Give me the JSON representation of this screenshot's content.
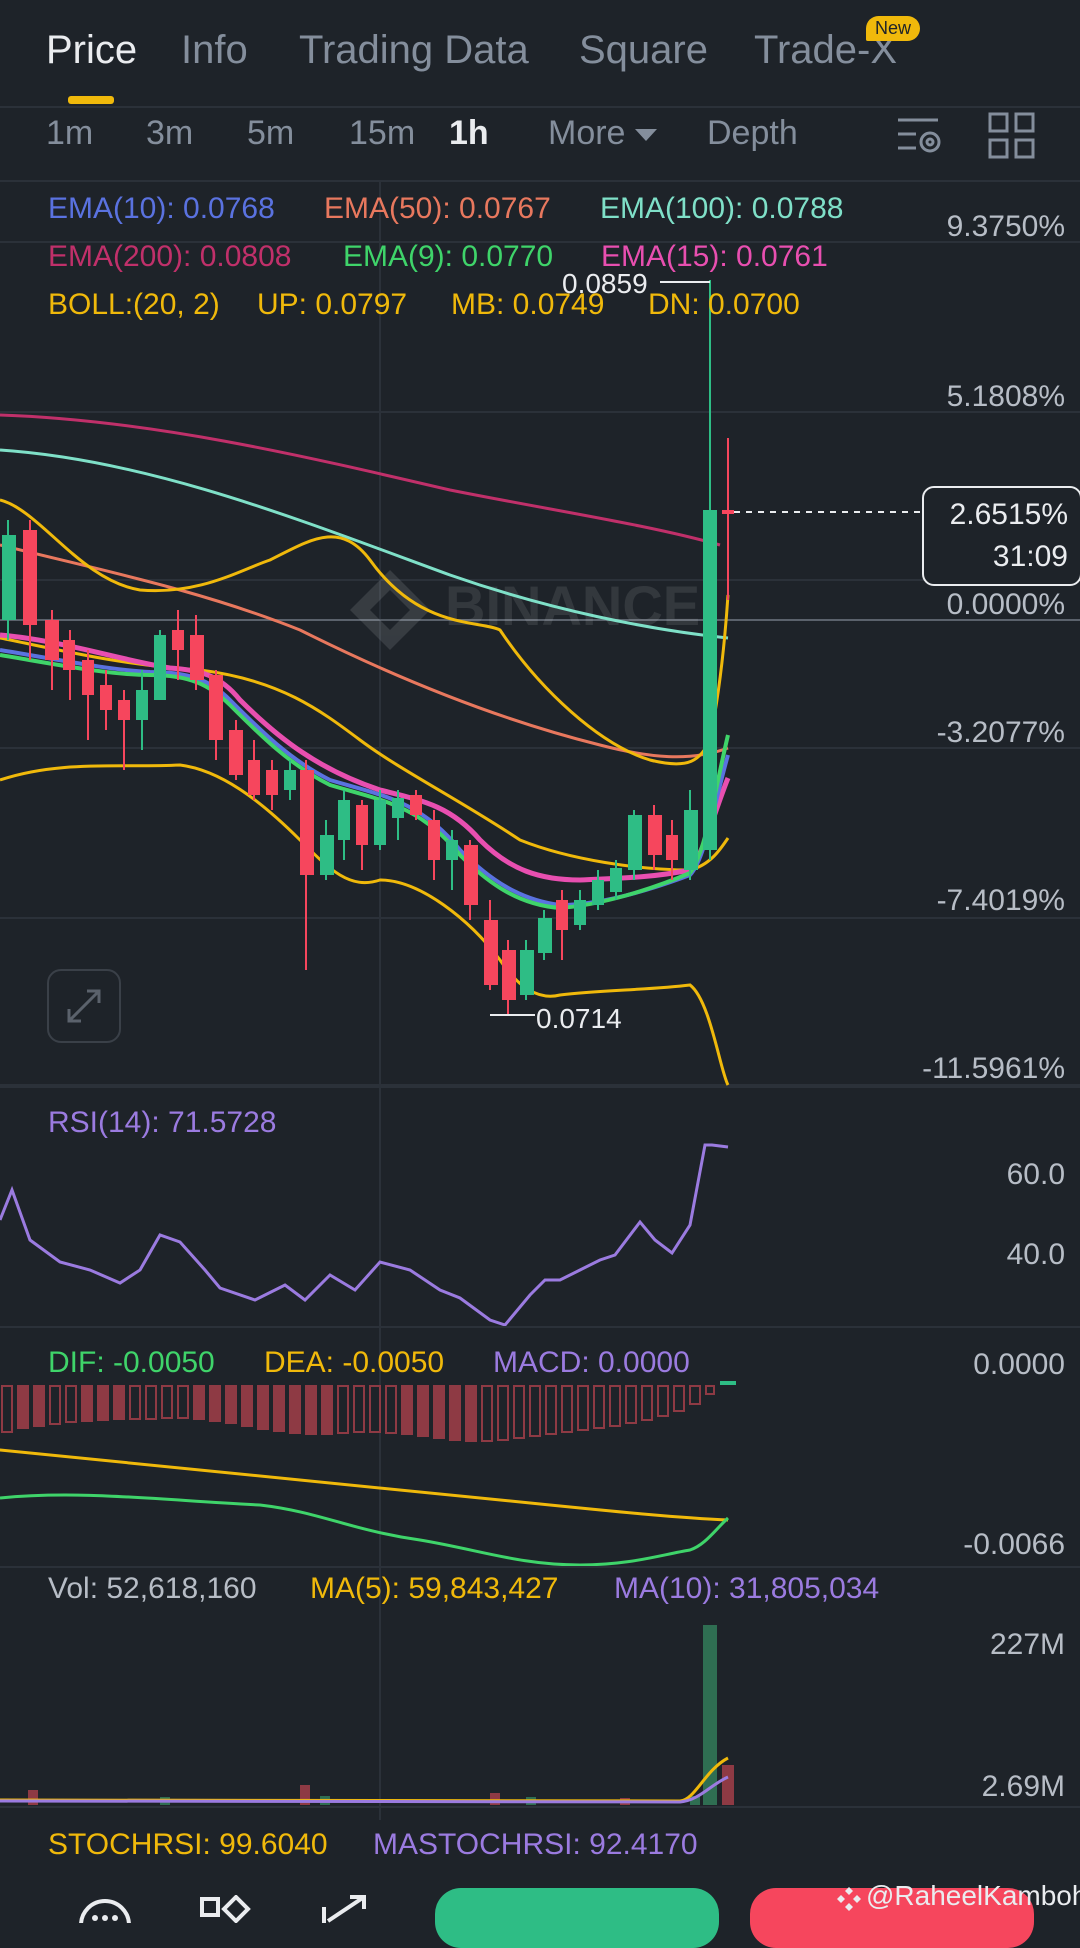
{
  "tabs": [
    {
      "label": "Price",
      "active": true
    },
    {
      "label": "Info"
    },
    {
      "label": "Trading Data"
    },
    {
      "label": "Square"
    },
    {
      "label": "Trade-X",
      "badge": "New"
    }
  ],
  "timeframes": {
    "items": [
      "1m",
      "3m",
      "5m",
      "15m",
      "1h"
    ],
    "active": "1h",
    "more_label": "More",
    "depth_label": "Depth"
  },
  "price_panel": {
    "ema_row1": [
      "EMA(10): 0.0768",
      "EMA(50): 0.0767",
      "EMA(100): 0.0788"
    ],
    "ema_row2": [
      "EMA(200): 0.0808",
      "EMA(9): 0.0770",
      "EMA(15): 0.0761"
    ],
    "boll_row": [
      "BOLL:(20, 2)",
      "UP: 0.0797",
      "MB: 0.0749",
      "DN: 0.0700"
    ],
    "axis_labels": [
      "9.3750%",
      "5.1808%",
      "0.0000%",
      "-3.2077%",
      "-7.4019%",
      "-11.5961%"
    ],
    "high_label": "0.0859",
    "low_label": "0.0714",
    "current_change": "2.6515%",
    "countdown": "31:09",
    "watermark": "BINANCE"
  },
  "rsi_panel": {
    "label": "RSI(14): 71.5728",
    "axis_labels": [
      "60.0",
      "40.0"
    ]
  },
  "macd_panel": {
    "labels": [
      "DIF: -0.0050",
      "DEA: -0.0050",
      "MACD: 0.0000"
    ],
    "axis_labels": [
      "0.0000",
      "-0.0066"
    ]
  },
  "volume_panel": {
    "labels": [
      "Vol: 52,618,160",
      "MA(5): 59,843,427",
      "MA(10): 31,805,034"
    ],
    "axis_labels": [
      "227M",
      "2.69M"
    ]
  },
  "stochrsi": {
    "labels": [
      "STOCHRSI: 99.6040",
      "MASTOCHRSI: 92.4170"
    ]
  },
  "footer": {
    "watermark": "@RaheelKamboh"
  },
  "colors": {
    "ema10": "#5a72e0",
    "ema50": "#e8785e",
    "ema100": "#7fe0c8",
    "ema200": "#c0306a",
    "ema9": "#3fd46a",
    "ema15": "#e84fb0",
    "boll": "#f0b90b",
    "rsi": "#9b7be0",
    "up": "#2ebd85",
    "down": "#f6465d"
  }
}
